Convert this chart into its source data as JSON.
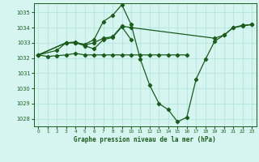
{
  "title": "Graphe pression niveau de la mer (hPa)",
  "bg_color": "#d6f5f0",
  "grid_color": "#b8e8e0",
  "line_color": "#1a5c1a",
  "xlim": [
    -0.5,
    23.5
  ],
  "ylim": [
    1027.5,
    1035.6
  ],
  "yticks": [
    1028,
    1029,
    1030,
    1031,
    1032,
    1033,
    1034,
    1035
  ],
  "xticks": [
    0,
    1,
    2,
    3,
    4,
    5,
    6,
    7,
    8,
    9,
    10,
    11,
    12,
    13,
    14,
    15,
    16,
    17,
    18,
    19,
    20,
    21,
    22,
    23
  ],
  "lines": [
    {
      "x": [
        0,
        1,
        2,
        3,
        4,
        5,
        6,
        7,
        8,
        9,
        10,
        11,
        12,
        13,
        14,
        15,
        16
      ],
      "y": [
        1032.2,
        1032.1,
        1032.15,
        1032.2,
        1032.3,
        1032.2,
        1032.2,
        1032.2,
        1032.2,
        1032.2,
        1032.2,
        1032.2,
        1032.2,
        1032.2,
        1032.2,
        1032.2,
        1032.2
      ]
    },
    {
      "x": [
        0,
        2,
        3,
        4,
        5,
        6,
        7,
        8,
        9,
        10,
        11,
        12,
        13,
        14,
        15,
        16,
        17,
        18,
        19,
        20,
        21,
        22,
        23
      ],
      "y": [
        1032.2,
        1032.5,
        1033.0,
        1033.0,
        1032.9,
        1033.2,
        1034.4,
        1034.8,
        1035.5,
        1034.2,
        1031.9,
        1030.2,
        1029.0,
        1028.6,
        1027.8,
        1028.1,
        1030.6,
        1031.9,
        1033.1,
        1033.5,
        1034.0,
        1034.15,
        1034.2
      ]
    },
    {
      "x": [
        0,
        3,
        4,
        5,
        6,
        7,
        8,
        9,
        10,
        19,
        20,
        21,
        22,
        23
      ],
      "y": [
        1032.2,
        1033.0,
        1033.05,
        1032.85,
        1033.0,
        1033.3,
        1033.4,
        1034.1,
        1034.0,
        1033.3,
        1033.5,
        1034.0,
        1034.1,
        1034.2
      ]
    },
    {
      "x": [
        0,
        3,
        4,
        5,
        6,
        7,
        8,
        9,
        10
      ],
      "y": [
        1032.2,
        1033.0,
        1033.0,
        1032.8,
        1032.6,
        1033.2,
        1033.35,
        1034.05,
        1033.2
      ]
    }
  ]
}
